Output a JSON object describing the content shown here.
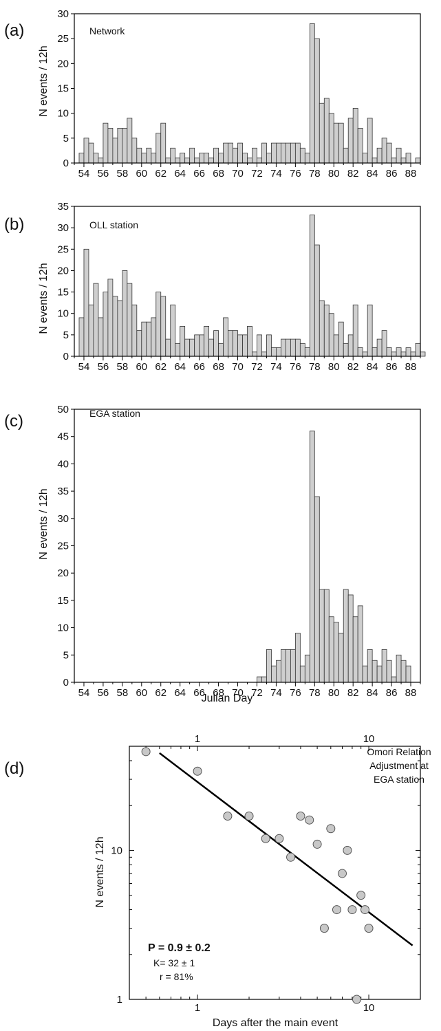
{
  "chart_data": [
    {
      "id": "a",
      "type": "bar",
      "panel_label": "(a)",
      "inner_label": "Network",
      "ylabel": "N events / 12h",
      "xlabel": "",
      "ylim": [
        0,
        30
      ],
      "yticks": [
        0,
        5,
        10,
        15,
        20,
        25,
        30
      ],
      "xlim": [
        53,
        89
      ],
      "xticks": [
        54,
        56,
        58,
        60,
        62,
        64,
        66,
        68,
        70,
        72,
        74,
        76,
        78,
        80,
        82,
        84,
        86,
        88
      ],
      "bin_width": 0.5,
      "x_start": 53.5,
      "values": [
        2,
        5,
        4,
        2,
        1,
        8,
        7,
        5,
        7,
        7,
        9,
        5,
        3,
        2,
        3,
        2,
        6,
        8,
        1,
        3,
        1,
        2,
        1,
        3,
        1,
        2,
        2,
        1,
        3,
        2,
        4,
        4,
        3,
        4,
        2,
        1,
        3,
        1,
        4,
        2,
        4,
        4,
        4,
        4,
        4,
        4,
        3,
        2,
        28,
        25,
        12,
        13,
        10,
        8,
        8,
        3,
        9,
        11,
        7,
        2,
        9,
        1,
        3,
        5,
        4,
        1,
        3,
        1,
        2,
        0,
        1,
        0
      ]
    },
    {
      "id": "b",
      "type": "bar",
      "panel_label": "(b)",
      "inner_label": "OLL station",
      "ylabel": "N events / 12h",
      "xlabel": "",
      "ylim": [
        0,
        35
      ],
      "yticks": [
        0,
        5,
        10,
        15,
        20,
        25,
        30,
        35
      ],
      "xlim": [
        53,
        89
      ],
      "xticks": [
        54,
        56,
        58,
        60,
        62,
        64,
        66,
        68,
        70,
        72,
        74,
        76,
        78,
        80,
        82,
        84,
        86,
        88
      ],
      "bin_width": 0.5,
      "x_start": 53.5,
      "values": [
        9,
        25,
        12,
        17,
        9,
        15,
        18,
        14,
        13,
        20,
        17,
        12,
        6,
        8,
        8,
        9,
        15,
        14,
        4,
        12,
        3,
        7,
        4,
        4,
        5,
        5,
        7,
        4,
        6,
        3,
        9,
        6,
        6,
        5,
        5,
        7,
        1,
        5,
        1,
        5,
        2,
        2,
        4,
        4,
        4,
        4,
        3,
        2,
        33,
        26,
        13,
        12,
        10,
        5,
        8,
        3,
        5,
        12,
        2,
        1,
        12,
        2,
        4,
        6,
        2,
        1,
        2,
        1,
        2,
        1,
        3,
        1
      ]
    },
    {
      "id": "c",
      "type": "bar",
      "panel_label": "(c)",
      "inner_label": "EGA station",
      "ylabel": "N events / 12h",
      "xlabel": "Julian Day",
      "ylim": [
        0,
        50
      ],
      "yticks": [
        0,
        5,
        10,
        15,
        20,
        25,
        30,
        35,
        40,
        45,
        50
      ],
      "xlim": [
        53,
        89
      ],
      "xticks": [
        54,
        56,
        58,
        60,
        62,
        64,
        66,
        68,
        70,
        72,
        74,
        76,
        78,
        80,
        82,
        84,
        86,
        88
      ],
      "bin_width": 0.5,
      "x_start": 53.5,
      "values": [
        0,
        0,
        0,
        0,
        0,
        0,
        0,
        0,
        0,
        0,
        0,
        0,
        0,
        0,
        0,
        0,
        0,
        0,
        0,
        0,
        0,
        0,
        0,
        0,
        0,
        0,
        0,
        0,
        0,
        0,
        0,
        0,
        0,
        0,
        0,
        0,
        0,
        1,
        1,
        6,
        3,
        4,
        6,
        6,
        6,
        9,
        3,
        5,
        46,
        34,
        17,
        17,
        12,
        11,
        9,
        17,
        16,
        12,
        14,
        3,
        6,
        4,
        3,
        6,
        4,
        1,
        5,
        4,
        3,
        0,
        0,
        0
      ]
    },
    {
      "id": "d",
      "type": "scatter",
      "panel_label": "(d)",
      "inner_label_lines": [
        "Omori Relation",
        "Adjustment at",
        "EGA station"
      ],
      "ylabel": "N events / 12h",
      "xlabel": "Days after the main event",
      "x_scale": "log",
      "y_scale": "log",
      "xlim": [
        0.4,
        20
      ],
      "ylim": [
        1,
        50
      ],
      "xticks": [
        1,
        10
      ],
      "yticks": [
        1,
        10
      ],
      "points": [
        {
          "x": 0.5,
          "y": 46
        },
        {
          "x": 1.0,
          "y": 34
        },
        {
          "x": 1.5,
          "y": 17
        },
        {
          "x": 2.0,
          "y": 17
        },
        {
          "x": 2.5,
          "y": 12
        },
        {
          "x": 3.0,
          "y": 12
        },
        {
          "x": 3.5,
          "y": 9
        },
        {
          "x": 4.0,
          "y": 17
        },
        {
          "x": 4.5,
          "y": 16
        },
        {
          "x": 5.0,
          "y": 11
        },
        {
          "x": 5.5,
          "y": 3
        },
        {
          "x": 6.0,
          "y": 14
        },
        {
          "x": 6.5,
          "y": 4
        },
        {
          "x": 7.0,
          "y": 7
        },
        {
          "x": 7.5,
          "y": 10
        },
        {
          "x": 8.0,
          "y": 4
        },
        {
          "x": 8.5,
          "y": 1
        },
        {
          "x": 9.0,
          "y": 5
        },
        {
          "x": 9.5,
          "y": 4
        },
        {
          "x": 10.0,
          "y": 3
        }
      ],
      "fit_line": {
        "x": [
          0.6,
          18
        ],
        "y": [
          45,
          2.3
        ]
      },
      "stats": {
        "p_text": "P = 0.9 ± 0.2",
        "k_text": "K= 32 ± 1",
        "r_text": "r = 81%"
      }
    }
  ],
  "style": {
    "bar_fill": "#cfcfcf",
    "bar_stroke": "#333333",
    "point_fill": "#c8c8c8",
    "point_stroke": "#555555",
    "line_color": "#000000"
  }
}
